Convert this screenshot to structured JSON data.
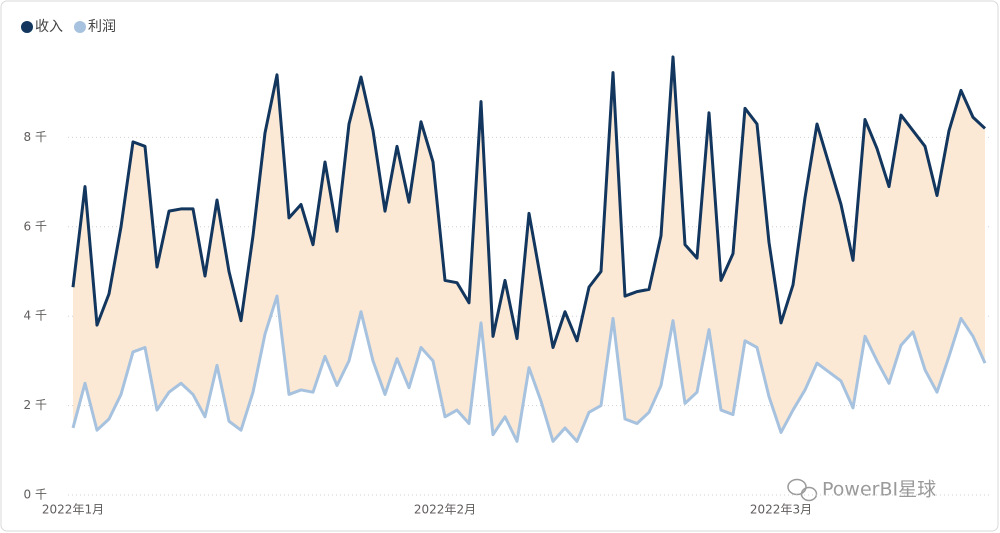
{
  "chart_data": {
    "type": "line",
    "categories": [
      "2022年1月",
      null,
      null,
      null,
      null,
      null,
      null,
      null,
      null,
      null,
      null,
      null,
      null,
      null,
      null,
      null,
      null,
      null,
      null,
      null,
      null,
      null,
      null,
      null,
      null,
      null,
      null,
      null,
      null,
      null,
      null,
      "2022年2月",
      null,
      null,
      null,
      null,
      null,
      null,
      null,
      null,
      null,
      null,
      null,
      null,
      null,
      null,
      null,
      null,
      null,
      null,
      null,
      null,
      null,
      null,
      null,
      null,
      null,
      null,
      null,
      "2022年3月",
      null,
      null,
      null,
      null,
      null,
      null,
      null,
      null,
      null,
      null,
      null,
      null,
      null,
      null,
      null,
      null,
      null
    ],
    "series": [
      {
        "name": "收入",
        "color": "#12365e",
        "values": [
          4650,
          6900,
          3800,
          4500,
          6000,
          7900,
          7800,
          5100,
          6350,
          6400,
          6400,
          4900,
          6600,
          5000,
          3900,
          5800,
          8100,
          9400,
          6200,
          6500,
          5600,
          7450,
          5900,
          8300,
          9350,
          8150,
          6350,
          7800,
          6550,
          8350,
          7450,
          4800,
          4750,
          4300,
          8800,
          3550,
          4800,
          3500,
          6300,
          4800,
          3300,
          4100,
          3450,
          4650,
          5000,
          9450,
          4450,
          4550,
          4600,
          5800,
          9800,
          5600,
          5300,
          8550,
          4800,
          5400,
          8650,
          8300,
          5650,
          3850,
          4700,
          6650,
          8300,
          7400,
          6500,
          5250,
          8400,
          7750,
          6900,
          8500,
          8150,
          7800,
          6700,
          8150,
          9050,
          8450,
          8200
        ]
      },
      {
        "name": "利润",
        "color": "#a7c2de",
        "values": [
          1500,
          2500,
          1450,
          1700,
          2250,
          3200,
          3300,
          1900,
          2300,
          2500,
          2250,
          1750,
          2900,
          1650,
          1450,
          2300,
          3600,
          4450,
          2250,
          2350,
          2300,
          3100,
          2450,
          3000,
          4100,
          3000,
          2250,
          3050,
          2400,
          3300,
          3000,
          1750,
          1900,
          1600,
          3850,
          1350,
          1750,
          1200,
          2850,
          2100,
          1200,
          1500,
          1200,
          1850,
          2000,
          3950,
          1700,
          1600,
          1850,
          2450,
          3900,
          2050,
          2300,
          3700,
          1900,
          1800,
          3450,
          3300,
          2200,
          1400,
          1900,
          2350,
          2950,
          2750,
          2550,
          1950,
          3550,
          3000,
          2500,
          3350,
          3650,
          2800,
          2300,
          3100,
          3950,
          3550,
          2950
        ]
      }
    ],
    "band_color": "#fbe9d6",
    "ylim": [
      0,
      10000
    ],
    "yticks": [
      {
        "value": 0,
        "label": "0 千"
      },
      {
        "value": 2000,
        "label": "2 千"
      },
      {
        "value": 4000,
        "label": "4 千"
      },
      {
        "value": 6000,
        "label": "6 千"
      },
      {
        "value": 8000,
        "label": "8 千"
      }
    ],
    "grid": true,
    "legend": "top-left",
    "watermark": "PowerBI星球"
  }
}
